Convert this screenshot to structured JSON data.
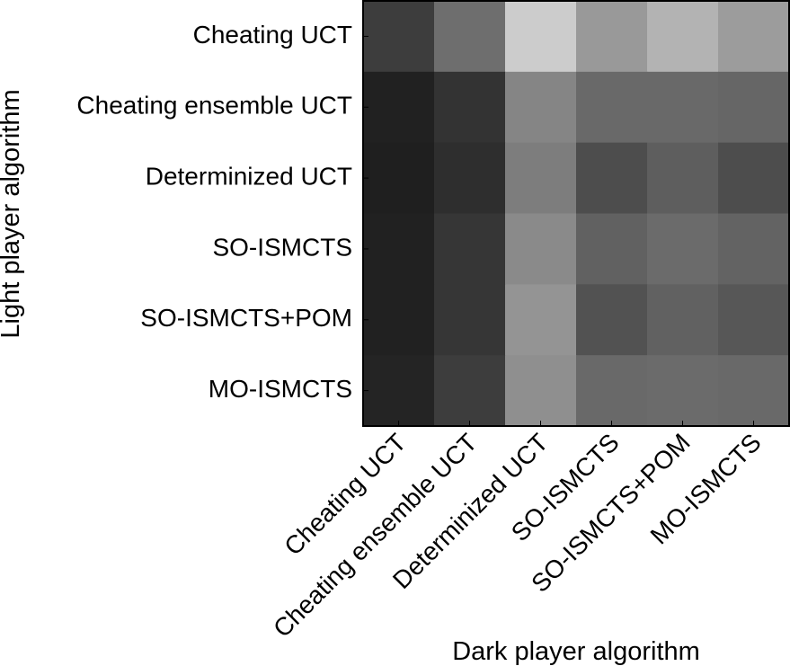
{
  "chart_data": {
    "type": "heatmap",
    "title": "",
    "xlabel": "Dark player algorithm",
    "ylabel": "Light player algorithm",
    "x_categories": [
      "Cheating UCT",
      "Cheating ensemble UCT",
      "Determinized UCT",
      "SO-ISMCTS",
      "SO-ISMCTS+POM",
      "MO-ISMCTS"
    ],
    "y_categories": [
      "Cheating UCT",
      "Cheating ensemble UCT",
      "Determinized UCT",
      "SO-ISMCTS",
      "SO-ISMCTS+POM",
      "MO-ISMCTS"
    ],
    "colormap": "gray",
    "value_range": [
      0,
      1
    ],
    "grid": false,
    "values": [
      [
        0.24,
        0.43,
        0.8,
        0.6,
        0.7,
        0.61
      ],
      [
        0.13,
        0.2,
        0.52,
        0.41,
        0.41,
        0.4
      ],
      [
        0.12,
        0.18,
        0.49,
        0.3,
        0.37,
        0.3
      ],
      [
        0.13,
        0.21,
        0.54,
        0.38,
        0.42,
        0.39
      ],
      [
        0.13,
        0.21,
        0.58,
        0.32,
        0.38,
        0.34
      ],
      [
        0.14,
        0.24,
        0.56,
        0.41,
        0.42,
        0.41
      ]
    ]
  }
}
